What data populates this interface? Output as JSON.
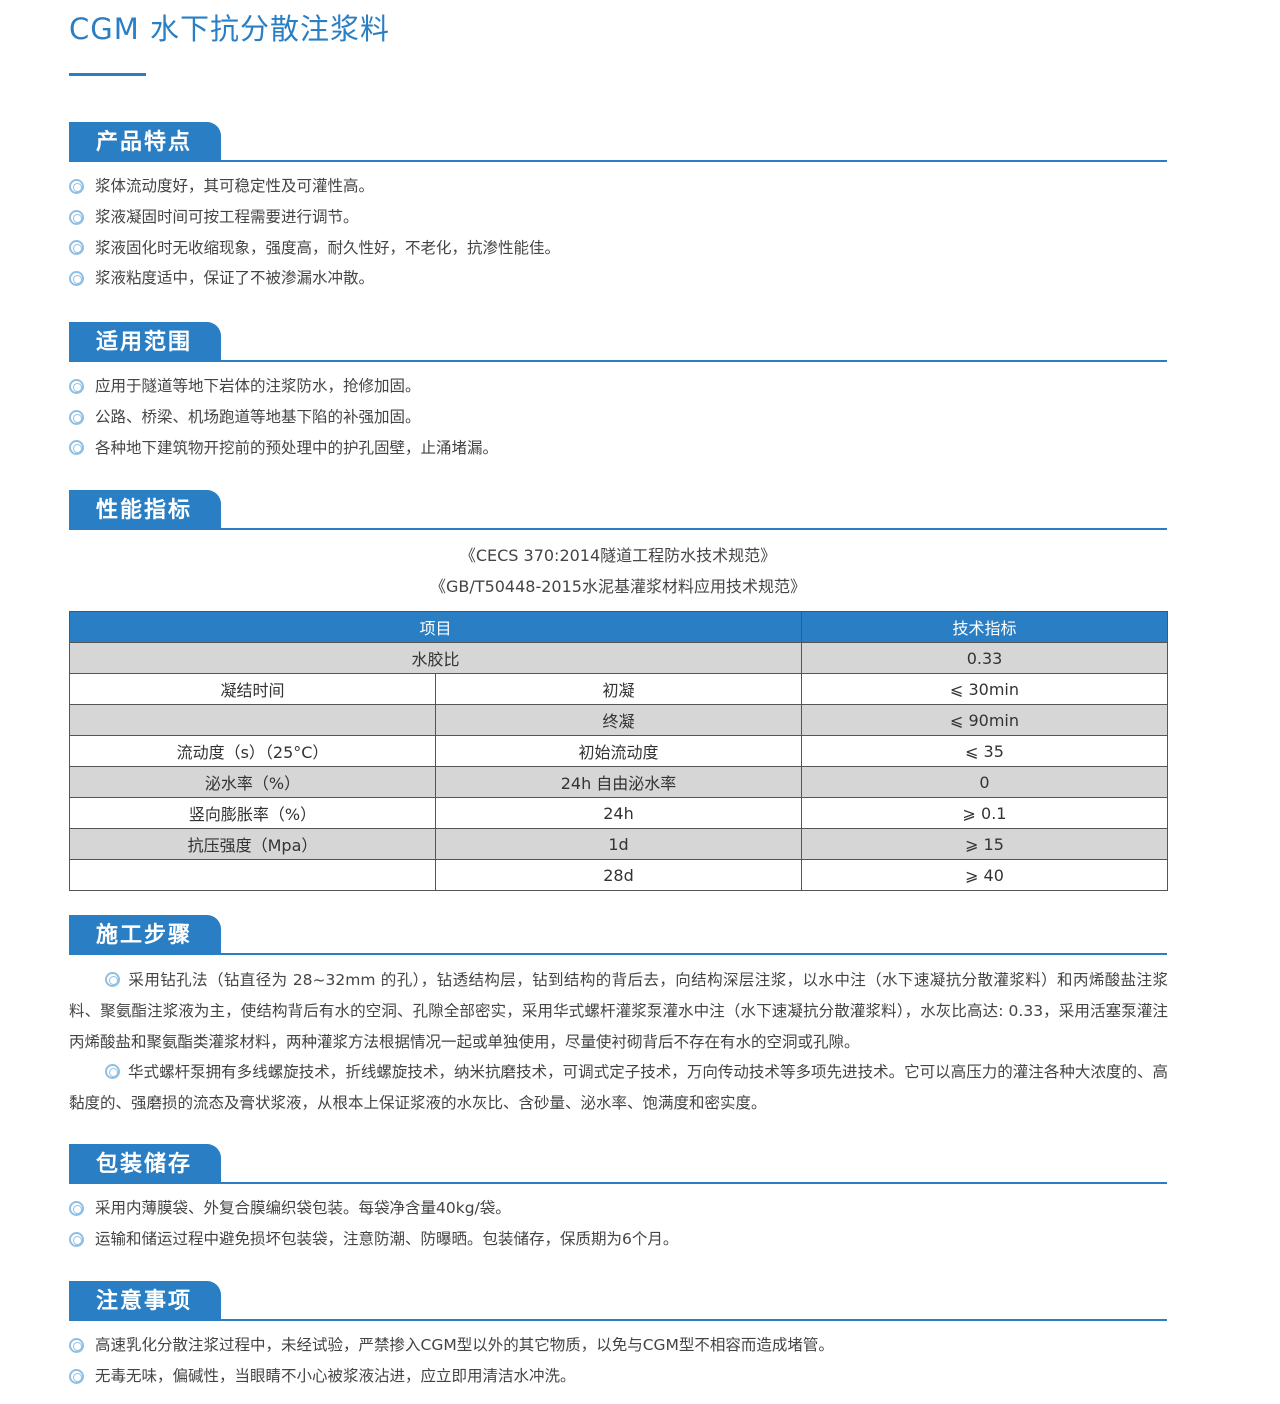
{
  "title": "CGM 水下抗分散注浆料",
  "colors": {
    "accent": "#2a7fc4",
    "row_gray": "#d6d6d6"
  },
  "features": {
    "heading": "产品特点",
    "items": [
      "浆体流动度好，其可稳定性及可灌性高。",
      "浆液凝固时间可按工程需要进行调节。",
      "浆液固化时无收缩现象，强度高，耐久性好，不老化，抗渗性能佳。",
      "浆液粘度适中，保证了不被渗漏水冲散。"
    ]
  },
  "scope": {
    "heading": "适用范围",
    "items": [
      "应用于隧道等地下岩体的注浆防水，抢修加固。",
      "公路、桥梁、机场跑道等地基下陷的补强加固。",
      "各种地下建筑物开挖前的预处理中的护孔固壁，止涌堵漏。"
    ]
  },
  "performance": {
    "heading": "性能指标",
    "refs": [
      "《CECS 370:2014隧道工程防水技术规范》",
      "《GB/T50448-2015水泥基灌浆材料应用技术规范》"
    ],
    "table": {
      "headers": [
        "项目",
        "技术指标"
      ],
      "rows": [
        {
          "a": "水胶比",
          "b": "",
          "v": "0.33"
        },
        {
          "a": "凝结时间",
          "b": "初凝",
          "v": "⩽ 30min"
        },
        {
          "a": "",
          "b": "终凝",
          "v": "⩽ 90min"
        },
        {
          "a": "流动度（s）（25°C）",
          "b": "初始流动度",
          "v": "⩽ 35"
        },
        {
          "a": "泌水率（%）",
          "b": "24h 自由泌水率",
          "v": "0"
        },
        {
          "a": "竖向膨胀率（%）",
          "b": "24h",
          "v": "⩾ 0.1"
        },
        {
          "a": "抗压强度（Mpa）",
          "b": "1d",
          "v": "⩾ 15"
        },
        {
          "a": "",
          "b": "28d",
          "v": "⩾ 40"
        }
      ]
    }
  },
  "construction": {
    "heading": "施工步骤",
    "paragraphs": [
      "采用钻孔法（钻直径为 28~32mm 的孔），钻透结构层，钻到结构的背后去，向结构深层注浆，以水中注（水下速凝抗分散灌浆料）和丙烯酸盐注浆料、聚氨酯注浆液为主，使结构背后有水的空洞、孔隙全部密实，采用华式螺杆灌浆泵灌水中注（水下速凝抗分散灌浆料），水灰比高达: 0.33，采用活塞泵灌注丙烯酸盐和聚氨酯类灌浆材料，两种灌浆方法根据情况一起或单独使用，尽量使衬砌背后不存在有水的空洞或孔隙。",
      "华式螺杆泵拥有多线螺旋技术，折线螺旋技术，纳米抗磨技术，可调式定子技术，万向传动技术等多项先进技术。它可以高压力的灌注各种大浓度的、高黏度的、强磨损的流态及膏状浆液，从根本上保证浆液的水灰比、含砂量、泌水率、饱满度和密实度。"
    ]
  },
  "packaging": {
    "heading": "包装储存",
    "items": [
      "采用内薄膜袋、外复合膜编织袋包装。每袋净含量40kg/袋。",
      "运输和储运过程中避免损坏包装袋，注意防潮、防曝晒。包装储存，保质期为6个月。"
    ]
  },
  "notes": {
    "heading": "注意事项",
    "items": [
      "高速乳化分散注浆过程中，未经试验，严禁掺入CGM型以外的其它物质，以免与CGM型不相容而造成堵管。",
      "无毒无味，偏碱性，当眼睛不小心被浆液沾进，应立即用清洁水冲洗。"
    ]
  }
}
